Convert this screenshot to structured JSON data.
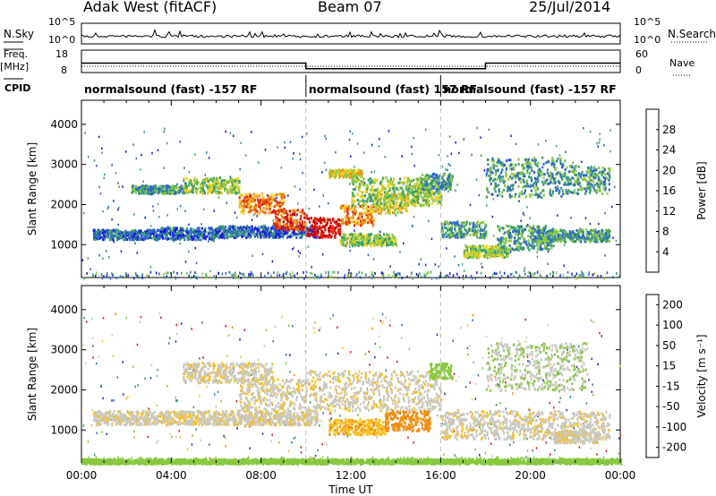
{
  "header": {
    "station": "Adak West (fitACF)",
    "beam": "Beam 07",
    "date": "25/Jul/2014"
  },
  "chart_data": [
    {
      "type": "line",
      "panel": "nsky-nsearch",
      "left_label": "N.Sky",
      "right_label": "N.Search",
      "left_ticks": [
        "10^5",
        "10^0"
      ],
      "right_ticks": [
        "10^5",
        "10^0"
      ],
      "x": [
        "00:00",
        "04:00",
        "08:00",
        "12:00",
        "16:00",
        "20:00",
        "00:00"
      ],
      "note": "noise level, log scale, roughly constant near 10^1"
    },
    {
      "type": "line",
      "panel": "freq-nave",
      "left_label": "Freq.",
      "left_unit": "[MHz]",
      "right_label": "Nave",
      "left_ticks": [
        "18",
        "8"
      ],
      "right_ticks": [
        "60",
        "0"
      ],
      "series": [
        {
          "name": "Freq.",
          "x_hours": [
            0,
            10,
            10,
            18,
            18,
            24
          ],
          "values": [
            13,
            13,
            10.5,
            10.5,
            13,
            13
          ]
        },
        {
          "name": "Nave",
          "x_hours": [
            0,
            24
          ],
          "values": [
            18,
            18
          ]
        }
      ]
    },
    {
      "type": "table",
      "panel": "cpid",
      "label": "CPID",
      "segments": [
        {
          "start": 0,
          "end": 10,
          "text": "normalsound (fast) -157 RF"
        },
        {
          "start": 10,
          "end": 16,
          "text": "normalsound (fast) 157 RF"
        },
        {
          "start": 16,
          "end": 24,
          "text": "normalsound (fast) -157 RF"
        }
      ]
    },
    {
      "type": "heatmap",
      "panel": "power",
      "ylabel": "Slant Range [km]",
      "xlabel": "",
      "yticks": [
        1000,
        2000,
        3000,
        4000
      ],
      "ylim": [
        180,
        4600
      ],
      "xlim": [
        0,
        24
      ],
      "colorbar_label": "Power [dB]",
      "colorbar_ticks": [
        4,
        8,
        12,
        16,
        20,
        24,
        28
      ],
      "colorbar_range": [
        0,
        32
      ],
      "colors": [
        "#1a1ae0",
        "#2d68c8",
        "#3aa06a",
        "#8cc840",
        "#f0d020",
        "#f08c10",
        "#e83010",
        "#d00000"
      ],
      "echo_regions": [
        {
          "t": [
            0.5,
            3.5
          ],
          "r": [
            1150,
            1400
          ],
          "level": 1
        },
        {
          "t": [
            3.5,
            6.0
          ],
          "r": [
            1150,
            1450
          ],
          "level": 1
        },
        {
          "t": [
            6.0,
            10.5
          ],
          "r": [
            1200,
            1500
          ],
          "level": 1
        },
        {
          "t": [
            2.2,
            4.5
          ],
          "r": [
            2300,
            2500
          ],
          "level": 2
        },
        {
          "t": [
            4.5,
            7.0
          ],
          "r": [
            2300,
            2700
          ],
          "level": 3
        },
        {
          "t": [
            7.0,
            9.0
          ],
          "r": [
            1800,
            2300
          ],
          "level": 5
        },
        {
          "t": [
            8.5,
            10.0
          ],
          "r": [
            1400,
            1900
          ],
          "level": 6
        },
        {
          "t": [
            10.0,
            11.5
          ],
          "r": [
            1200,
            1700
          ],
          "level": 7
        },
        {
          "t": [
            11.5,
            13.0
          ],
          "r": [
            1500,
            2000
          ],
          "level": 5
        },
        {
          "t": [
            13.0,
            14.5
          ],
          "r": [
            1800,
            2300
          ],
          "level": 4
        },
        {
          "t": [
            14.5,
            16.0
          ],
          "r": [
            2000,
            2500
          ],
          "level": 3
        },
        {
          "t": [
            11.0,
            12.5
          ],
          "r": [
            2700,
            2900
          ],
          "level": 4
        },
        {
          "t": [
            11.5,
            14.0
          ],
          "r": [
            1000,
            1300
          ],
          "level": 3
        },
        {
          "t": [
            16.0,
            18.0
          ],
          "r": [
            1200,
            1600
          ],
          "level": 2
        },
        {
          "t": [
            17.0,
            19.0
          ],
          "r": [
            700,
            1000
          ],
          "level": 3
        },
        {
          "t": [
            18.5,
            21.0
          ],
          "r": [
            900,
            1500
          ],
          "level": 2
        },
        {
          "t": [
            20.0,
            23.5
          ],
          "r": [
            1100,
            1400
          ],
          "level": 2
        },
        {
          "t": [
            18.0,
            21.5
          ],
          "r": [
            2200,
            3200
          ],
          "level": 2
        },
        {
          "t": [
            21.5,
            23.5
          ],
          "r": [
            2300,
            3000
          ],
          "level": 2
        },
        {
          "t": [
            12.0,
            15.5
          ],
          "r": [
            2000,
            2700
          ],
          "level": 3
        },
        {
          "t": [
            15.0,
            16.5
          ],
          "r": [
            2400,
            2800
          ],
          "level": 2
        }
      ]
    },
    {
      "type": "heatmap",
      "panel": "velocity",
      "ylabel": "Slant Range [km]",
      "xlabel": "Time UT",
      "yticks": [
        1000,
        2000,
        3000,
        4000
      ],
      "ylim": [
        180,
        4600
      ],
      "xlim": [
        0,
        24
      ],
      "xticks": [
        "00:00",
        "04:00",
        "08:00",
        "12:00",
        "16:00",
        "20:00",
        "00:00"
      ],
      "colorbar_label": "Velocity [m s⁻¹]",
      "colorbar_ticks": [
        200,
        100,
        50,
        15,
        -15,
        -50,
        -100,
        -200
      ],
      "colors": [
        "#2828c8",
        "#2d7ab8",
        "#2f9a58",
        "#88c840",
        "#c8c8c0",
        "#f8c020",
        "#f08c10",
        "#e81818"
      ],
      "echo_regions": [
        {
          "t": [
            0.5,
            10.5
          ],
          "r": [
            1150,
            1500
          ],
          "vel": -10
        },
        {
          "t": [
            4.5,
            8.5
          ],
          "r": [
            2200,
            2700
          ],
          "vel": -10
        },
        {
          "t": [
            7.0,
            10.0
          ],
          "r": [
            1500,
            2300
          ],
          "vel": -10
        },
        {
          "t": [
            10.0,
            16.0
          ],
          "r": [
            1500,
            2500
          ],
          "vel": -10
        },
        {
          "t": [
            11.0,
            13.5
          ],
          "r": [
            900,
            1300
          ],
          "vel": -45
        },
        {
          "t": [
            13.5,
            15.5
          ],
          "r": [
            1000,
            1500
          ],
          "vel": -80
        },
        {
          "t": [
            16.0,
            23.5
          ],
          "r": [
            800,
            1500
          ],
          "vel": -10
        },
        {
          "t": [
            18.0,
            22.5
          ],
          "r": [
            2000,
            3200
          ],
          "vel": 12
        },
        {
          "t": [
            15.5,
            16.5
          ],
          "r": [
            2300,
            2700
          ],
          "vel": 30
        },
        {
          "t": [
            0.0,
            24.0
          ],
          "r": [
            180,
            300
          ],
          "vel": 25
        },
        {
          "t": [
            21.0,
            23.0
          ],
          "r": [
            700,
            1000
          ],
          "vel": -10
        }
      ]
    }
  ]
}
